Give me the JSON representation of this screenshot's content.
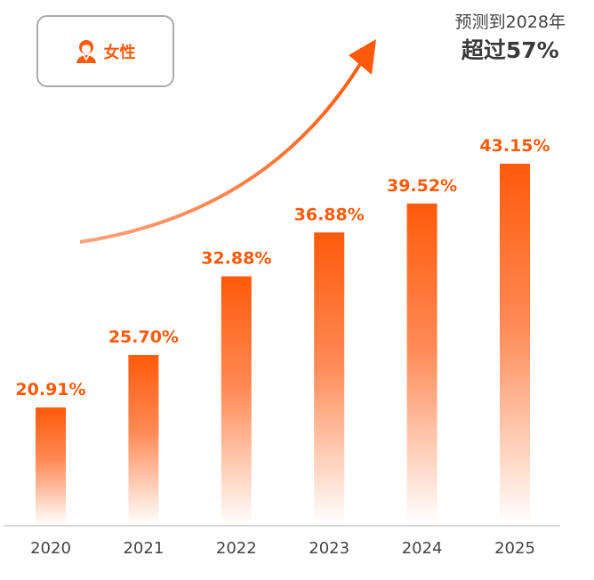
{
  "badge": {
    "label": "女性",
    "icon": "woman-user-icon"
  },
  "annotation": {
    "line1": "预测到2028年",
    "line2": "超过57%"
  },
  "colors": {
    "accent": "#ff5a0a",
    "axis": "#cccccc",
    "tick_text": "#444444"
  },
  "chart_data": {
    "type": "bar",
    "categories": [
      "2020",
      "2021",
      "2022",
      "2023",
      "2024",
      "2025"
    ],
    "values": [
      20.91,
      25.7,
      32.88,
      36.88,
      39.52,
      43.15
    ],
    "data_labels": [
      "20.91%",
      "25.70%",
      "32.88%",
      "36.88%",
      "39.52%",
      "43.15%"
    ],
    "title": "",
    "xlabel": "",
    "ylabel": "",
    "grid": false,
    "legend": "none",
    "trend_arrow": "up"
  }
}
